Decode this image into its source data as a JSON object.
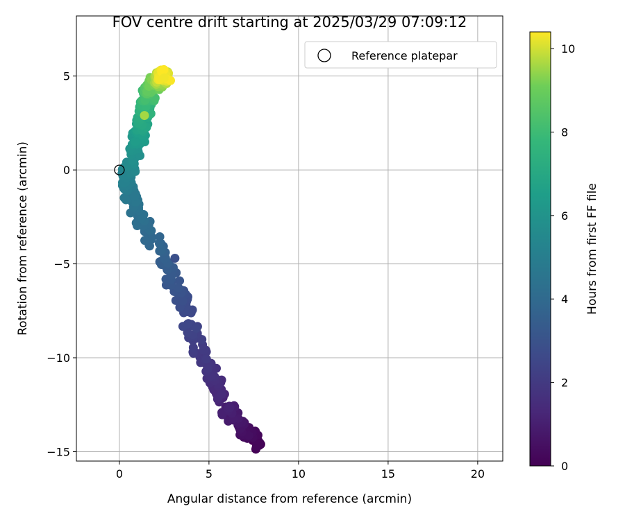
{
  "chart_data": {
    "type": "scatter",
    "title": "FOV centre drift starting at 2025/03/29 07:09:12",
    "xlabel": "Angular distance from reference (arcmin)",
    "ylabel": "Rotation from reference (arcmin)",
    "xlim": [
      -2.4,
      21.4
    ],
    "ylim": [
      -15.5,
      8.2
    ],
    "xticks": [
      0,
      5,
      10,
      15,
      20
    ],
    "yticks": [
      5,
      0,
      -5,
      -10,
      -15
    ],
    "xtick_labels": [
      "0",
      "5",
      "10",
      "15",
      "20"
    ],
    "ytick_labels": [
      "5",
      "0",
      "−5",
      "−10",
      "−15"
    ],
    "grid": true,
    "legend": {
      "location": "upper right",
      "entries": [
        "Reference platepar"
      ]
    },
    "colorbar": {
      "label": "Hours from first FF file",
      "range": [
        0,
        10.4
      ],
      "ticks": [
        0,
        2,
        4,
        6,
        8,
        10
      ],
      "tick_labels": [
        "0",
        "2",
        "4",
        "6",
        "8",
        "10"
      ],
      "colormap": "viridis"
    },
    "reference_point": {
      "x": 0,
      "y": 0
    },
    "drift_track": [
      {
        "hours": 0.0,
        "x": 7.8,
        "y": -14.7
      },
      {
        "hours": 0.5,
        "x": 6.9,
        "y": -13.8
      },
      {
        "hours": 1.0,
        "x": 6.1,
        "y": -12.8
      },
      {
        "hours": 1.5,
        "x": 5.3,
        "y": -11.4
      },
      {
        "hours": 2.0,
        "x": 4.6,
        "y": -9.9
      },
      {
        "hours": 2.5,
        "x": 3.9,
        "y": -8.0
      },
      {
        "hours": 3.0,
        "x": 3.2,
        "y": -6.4
      },
      {
        "hours": 3.5,
        "x": 2.5,
        "y": -4.8
      },
      {
        "hours": 4.0,
        "x": 1.6,
        "y": -3.2
      },
      {
        "hours": 4.5,
        "x": 0.8,
        "y": -1.8
      },
      {
        "hours": 5.0,
        "x": 0.35,
        "y": -0.7
      },
      {
        "hours": 5.5,
        "x": 0.55,
        "y": 0.3
      },
      {
        "hours": 6.0,
        "x": 0.95,
        "y": 1.2
      },
      {
        "hours": 6.5,
        "x": 1.15,
        "y": 2.0
      },
      {
        "hours": 7.0,
        "x": 1.3,
        "y": 2.7
      },
      {
        "hours": 7.5,
        "x": 1.45,
        "y": 3.3
      },
      {
        "hours": 8.0,
        "x": 1.6,
        "y": 3.9
      },
      {
        "hours": 8.5,
        "x": 1.75,
        "y": 4.3
      },
      {
        "hours": 9.0,
        "x": 1.95,
        "y": 4.6
      },
      {
        "hours": 9.5,
        "x": 2.2,
        "y": 4.85
      },
      {
        "hours": 10.0,
        "x": 2.45,
        "y": 5.0
      },
      {
        "hours": 10.4,
        "x": 2.55,
        "y": 5.0
      }
    ],
    "spread_arcmin": 0.35,
    "outliers": [
      {
        "hours": 2.9,
        "x": 3.1,
        "y": -4.7
      },
      {
        "hours": 9.6,
        "x": 1.4,
        "y": 2.9
      },
      {
        "hours": 10.3,
        "x": 2.5,
        "y": 4.9
      }
    ]
  }
}
